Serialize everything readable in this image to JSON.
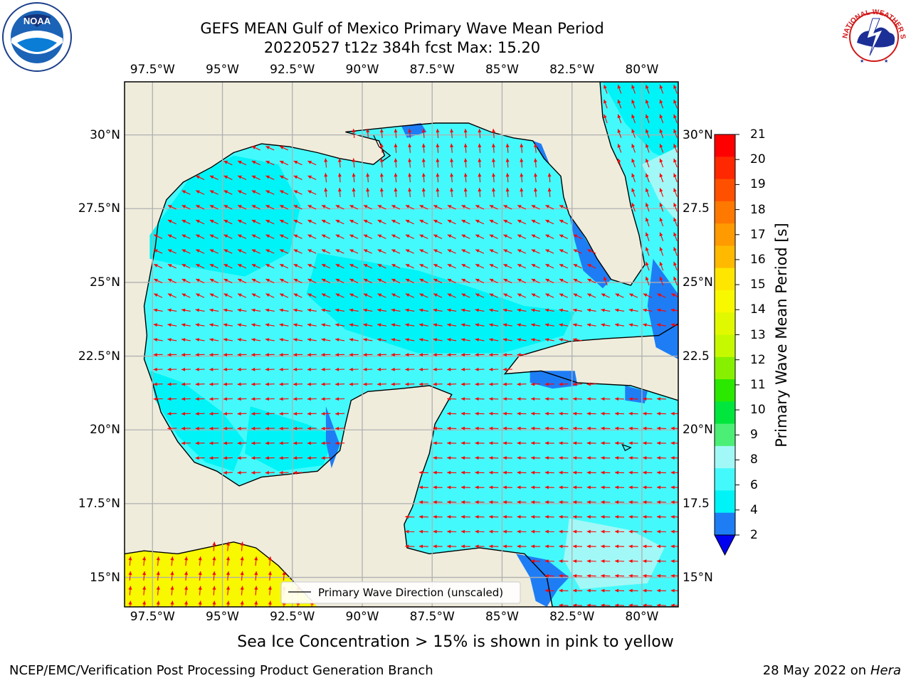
{
  "header": {
    "title_line1": "GEFS MEAN Gulf of Mexico Primary Wave Mean Period",
    "title_line2": "20220527 t12z 384h fcst   Max: 15.20"
  },
  "map": {
    "region": "Gulf of Mexico",
    "lon_range": [
      -98.5,
      -78.7
    ],
    "lat_range": [
      14.0,
      31.8
    ],
    "lon_tick_labels": [
      "97.5°W",
      "95°W",
      "92.5°W",
      "90°W",
      "87.5°W",
      "85°W",
      "82.5°W",
      "80°W"
    ],
    "lat_tick_labels_left": [
      "30°N",
      "27.5°N",
      "25°N",
      "22.5°N",
      "20°N",
      "17.5°N",
      "15°N"
    ],
    "lat_tick_labels_right": [
      "30°N",
      "27.5",
      "25°N",
      "22.5",
      "20°N",
      "17.5",
      "15°N"
    ],
    "legend_label": "Primary Wave Direction (unscaled)",
    "colors": {
      "land": "#efecdc",
      "ocean_4_6": "#00f3f6",
      "ocean_6_8": "#44f9fb",
      "ocean_2_4": "#1e7df5",
      "ocean_8_9": "#a2f8f6",
      "sea_ice": "#f8f800",
      "arrow": "#ff0000",
      "coast": "#000000",
      "grid": "#b0b0b0"
    }
  },
  "colorbar": {
    "label": "Primary Wave Mean Period [s]",
    "ticks": [
      "21",
      "20",
      "19",
      "18",
      "17",
      "16",
      "15",
      "14",
      "13",
      "12",
      "11",
      "10",
      "9",
      "8",
      "6",
      "4",
      "2"
    ],
    "colors": [
      "#ff0000",
      "#ff2800",
      "#ff5000",
      "#ff7800",
      "#ff9a00",
      "#ffba00",
      "#ffe600",
      "#f8f800",
      "#e1f900",
      "#c6f900",
      "#86f000",
      "#2ae800",
      "#00e63c",
      "#4bef76",
      "#a2f8f6",
      "#44f9fb",
      "#00f3f6",
      "#1e7df5"
    ],
    "extend_color": "#0000f0"
  },
  "caption": "Sea Ice Concentration > 15% is shown in pink to yellow",
  "footer": {
    "left": "NCEP/EMC/Verification Post Processing Product Generation Branch",
    "right_date": "28 May 2022 on",
    "right_host": "Hera"
  },
  "logos": {
    "left": "NOAA",
    "right_text": "NATIONAL WEATHER SERVICE"
  }
}
